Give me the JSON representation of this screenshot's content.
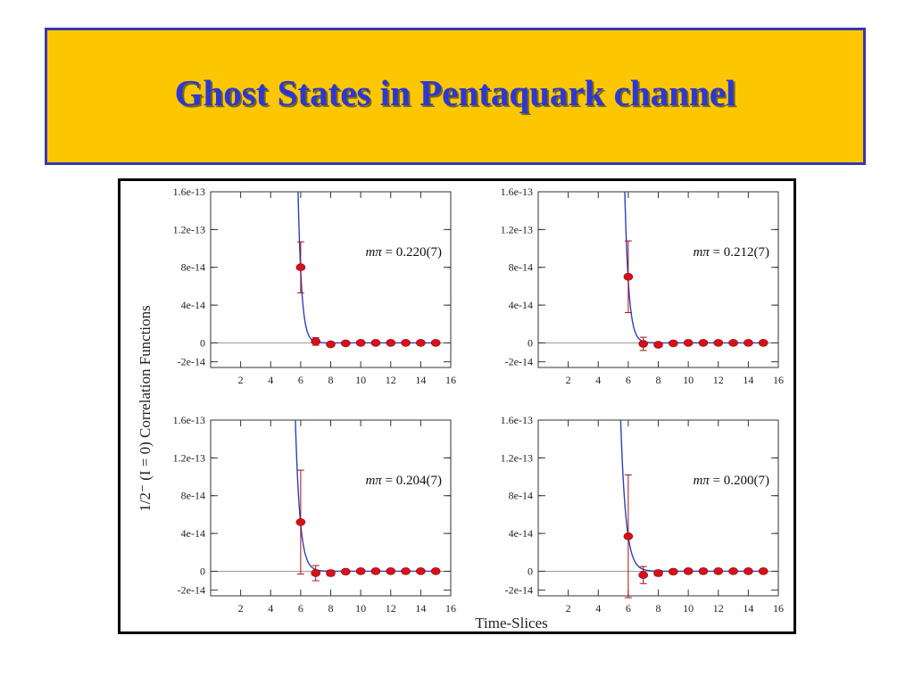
{
  "slide": {
    "title": "Ghost States in Pentaquark channel"
  },
  "colors": {
    "banner": "#fcc700",
    "banner_border": "#3a36b0",
    "title": "#2d36d6",
    "point": "#d8101a",
    "fit": "#3040b8",
    "errorbar": "#a01018"
  },
  "chart_data": [
    {
      "type": "scatter",
      "position": "top-left",
      "annotation_symbol": "mπ",
      "annotation_value": "= 0.220(7)",
      "xlim": [
        0,
        16
      ],
      "ylim": [
        -2.6e-14,
        1.6e-13
      ],
      "x": [
        6,
        7,
        8,
        9,
        10,
        11,
        12,
        13,
        14,
        15
      ],
      "y": [
        8e-14,
        1.5e-15,
        -1.5e-15,
        -5e-16,
        0,
        0,
        0,
        0,
        0,
        0
      ],
      "yerr": [
        2.7e-14,
        4e-15,
        1.5e-15,
        1e-15,
        5e-16,
        5e-16,
        5e-16,
        5e-16,
        5e-16,
        5e-16
      ],
      "fit": {
        "A": 7.63e-14,
        "b": 4.22,
        "x0": 6
      }
    },
    {
      "type": "scatter",
      "position": "top-right",
      "annotation_symbol": "mπ",
      "annotation_value": "= 0.212(7)",
      "xlim": [
        0,
        16
      ],
      "ylim": [
        -2.6e-14,
        1.6e-13
      ],
      "x": [
        6,
        7,
        8,
        9,
        10,
        11,
        12,
        13,
        14,
        15
      ],
      "y": [
        7e-14,
        -1e-15,
        -2e-15,
        -5e-16,
        0,
        0,
        0,
        0,
        0,
        0
      ],
      "yerr": [
        3.8e-14,
        7e-15,
        2e-15,
        1e-15,
        5e-16,
        5e-16,
        5e-16,
        5e-16,
        5e-16,
        5e-16
      ],
      "fit": {
        "A": 6.62e-14,
        "b": 3.8,
        "x0": 6
      }
    },
    {
      "type": "scatter",
      "position": "bottom-left",
      "annotation_symbol": "mπ",
      "annotation_value": "= 0.204(7)",
      "xlim": [
        0,
        16
      ],
      "ylim": [
        -2.6e-14,
        1.6e-13
      ],
      "x": [
        6,
        7,
        8,
        9,
        10,
        11,
        12,
        13,
        14,
        15
      ],
      "y": [
        5.2e-14,
        -2e-15,
        -2e-15,
        -5e-16,
        0,
        0,
        0,
        0,
        0,
        0
      ],
      "yerr": [
        5.5e-14,
        8e-15,
        3e-15,
        1.5e-15,
        5e-16,
        5e-16,
        5e-16,
        5e-16,
        5e-16,
        5e-16
      ],
      "fit": {
        "A": 4.97e-14,
        "b": 3.3,
        "x0": 6
      }
    },
    {
      "type": "scatter",
      "position": "bottom-right",
      "annotation_symbol": "mπ",
      "annotation_value": "= 0.200(7)",
      "xlim": [
        0,
        16
      ],
      "ylim": [
        -2.6e-14,
        1.6e-13
      ],
      "x": [
        6,
        7,
        8,
        9,
        10,
        11,
        12,
        13,
        14,
        15
      ],
      "y": [
        3.7e-14,
        -4e-15,
        -2e-15,
        -5e-16,
        0,
        0,
        0,
        0,
        0,
        0
      ],
      "yerr": [
        6.5e-14,
        9e-15,
        3e-15,
        1.5e-15,
        5e-16,
        5e-16,
        5e-16,
        5e-16,
        5e-16,
        5e-16
      ],
      "fit": {
        "A": 3.68e-14,
        "b": 2.9,
        "x0": 6
      }
    }
  ],
  "shared_axes": {
    "xlabel": "Time-Slices",
    "ylabel": "1/2⁻ (I = 0) Correlation Functions",
    "x_ticks": [
      2,
      4,
      6,
      8,
      10,
      12,
      14,
      16
    ],
    "y_ticks": [
      {
        "value": 1.6e-13,
        "label": "1.6e-13"
      },
      {
        "value": 1.2e-13,
        "label": "1.2e-13"
      },
      {
        "value": 8e-14,
        "label": "8e-14"
      },
      {
        "value": 4e-14,
        "label": "4e-14"
      },
      {
        "value": 0,
        "label": "0"
      },
      {
        "value": -2e-14,
        "label": "-2e-14"
      }
    ]
  }
}
